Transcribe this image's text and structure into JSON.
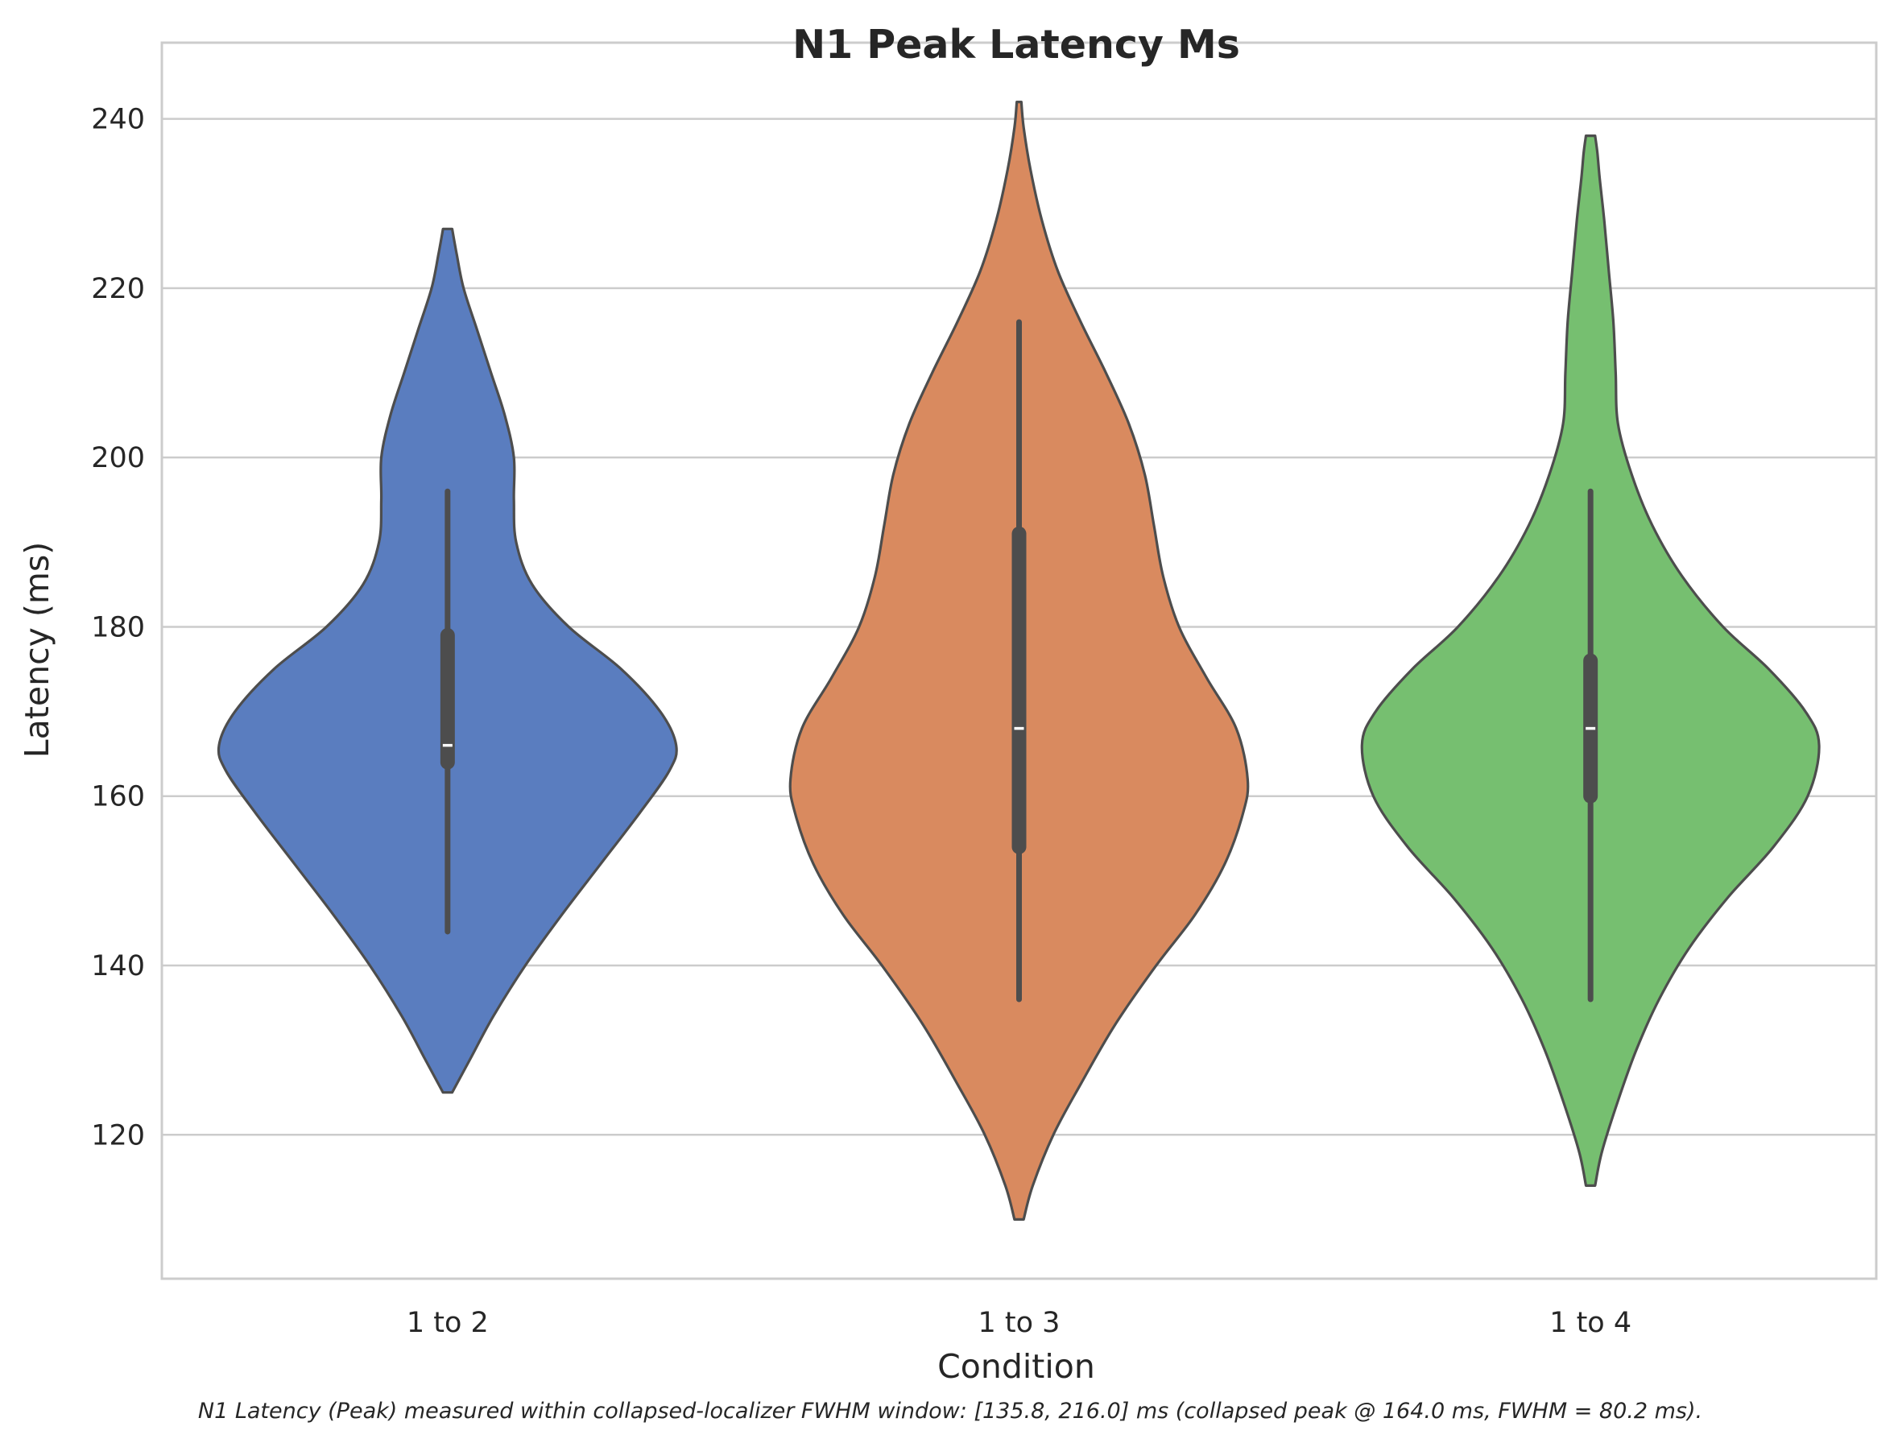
{
  "chart_data": {
    "type": "violin",
    "title": "N1 Peak Latency Ms",
    "xlabel": "Condition",
    "ylabel": "Latency (ms)",
    "categories": [
      "1 to 2",
      "1 to 3",
      "1 to 4"
    ],
    "ylim": [
      103,
      249
    ],
    "yticks": [
      120,
      140,
      160,
      180,
      200,
      220,
      240
    ],
    "grid": "horizontal",
    "caption": "N1 Latency (Peak) measured within collapsed-localizer FWHM window: [135.8, 216.0] ms (collapsed peak @ 164.0 ms, FWHM = 80.2 ms).",
    "colors": {
      "outline": "#4d4d4d",
      "box": "#4d4d4d",
      "median": "#ffffff",
      "grid": "#cccccc",
      "spine": "#cccccc"
    },
    "series": [
      {
        "category": "1 to 2",
        "color": "#5a7dbf",
        "min": 144,
        "q1": 164,
        "median": 166,
        "q3": 179,
        "max": 196,
        "density": [
          [
            125,
            0.02
          ],
          [
            129,
            0.1
          ],
          [
            134,
            0.2
          ],
          [
            140,
            0.34
          ],
          [
            146,
            0.5
          ],
          [
            152,
            0.67
          ],
          [
            158,
            0.84
          ],
          [
            163,
            0.97
          ],
          [
            166,
            1.0
          ],
          [
            170,
            0.93
          ],
          [
            175,
            0.76
          ],
          [
            180,
            0.53
          ],
          [
            185,
            0.37
          ],
          [
            190,
            0.3
          ],
          [
            195,
            0.29
          ],
          [
            200,
            0.29
          ],
          [
            205,
            0.25
          ],
          [
            210,
            0.19
          ],
          [
            215,
            0.13
          ],
          [
            220,
            0.07
          ],
          [
            224,
            0.04
          ],
          [
            227,
            0.02
          ]
        ]
      },
      {
        "category": "1 to 3",
        "color": "#d98a5f",
        "min": 136,
        "q1": 154,
        "median": 168,
        "q3": 191,
        "max": 216,
        "density": [
          [
            110,
            0.02
          ],
          [
            114,
            0.06
          ],
          [
            120,
            0.15
          ],
          [
            126,
            0.27
          ],
          [
            133,
            0.42
          ],
          [
            140,
            0.6
          ],
          [
            146,
            0.77
          ],
          [
            152,
            0.9
          ],
          [
            158,
            0.98
          ],
          [
            162,
            1.0
          ],
          [
            168,
            0.95
          ],
          [
            174,
            0.82
          ],
          [
            180,
            0.7
          ],
          [
            186,
            0.63
          ],
          [
            192,
            0.59
          ],
          [
            198,
            0.55
          ],
          [
            204,
            0.48
          ],
          [
            210,
            0.38
          ],
          [
            216,
            0.27
          ],
          [
            222,
            0.17
          ],
          [
            228,
            0.1
          ],
          [
            234,
            0.05
          ],
          [
            239,
            0.02
          ],
          [
            242,
            0.01
          ]
        ]
      },
      {
        "category": "1 to 4",
        "color": "#76bf70",
        "min": 136,
        "q1": 160,
        "median": 168,
        "q3": 176,
        "max": 196,
        "density": [
          [
            114,
            0.02
          ],
          [
            118,
            0.05
          ],
          [
            124,
            0.12
          ],
          [
            130,
            0.2
          ],
          [
            136,
            0.3
          ],
          [
            142,
            0.43
          ],
          [
            148,
            0.6
          ],
          [
            154,
            0.8
          ],
          [
            160,
            0.95
          ],
          [
            166,
            1.0
          ],
          [
            170,
            0.94
          ],
          [
            175,
            0.78
          ],
          [
            180,
            0.58
          ],
          [
            186,
            0.4
          ],
          [
            192,
            0.27
          ],
          [
            198,
            0.18
          ],
          [
            204,
            0.12
          ],
          [
            210,
            0.11
          ],
          [
            216,
            0.1
          ],
          [
            222,
            0.08
          ],
          [
            228,
            0.06
          ],
          [
            233,
            0.04
          ],
          [
            236,
            0.03
          ],
          [
            238,
            0.02
          ]
        ]
      }
    ]
  }
}
